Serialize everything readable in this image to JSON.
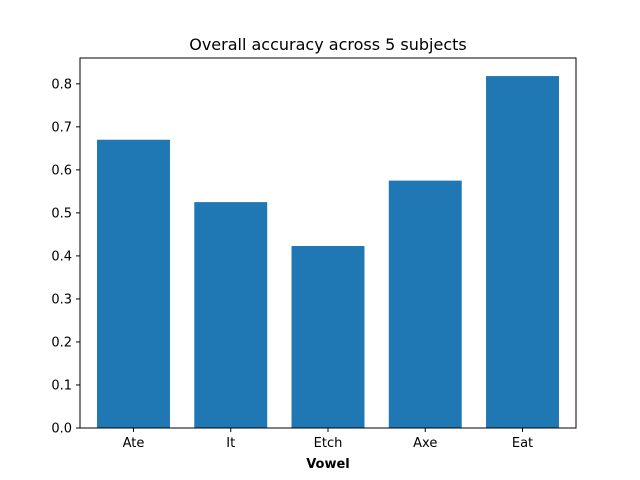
{
  "chart_data": {
    "type": "bar",
    "title": "Overall accuracy across 5 subjects",
    "xlabel": "Vowel",
    "ylabel": "",
    "categories": [
      "Ate",
      "It",
      "Etch",
      "Axe",
      "Eat"
    ],
    "values": [
      0.67,
      0.525,
      0.423,
      0.575,
      0.818
    ],
    "ylim": [
      0,
      0.86
    ],
    "yticks": [
      "0.0",
      "0.1",
      "0.2",
      "0.3",
      "0.4",
      "0.5",
      "0.6",
      "0.7",
      "0.8"
    ],
    "bar_color": "#1f77b4",
    "grid": false,
    "legend": "none"
  }
}
